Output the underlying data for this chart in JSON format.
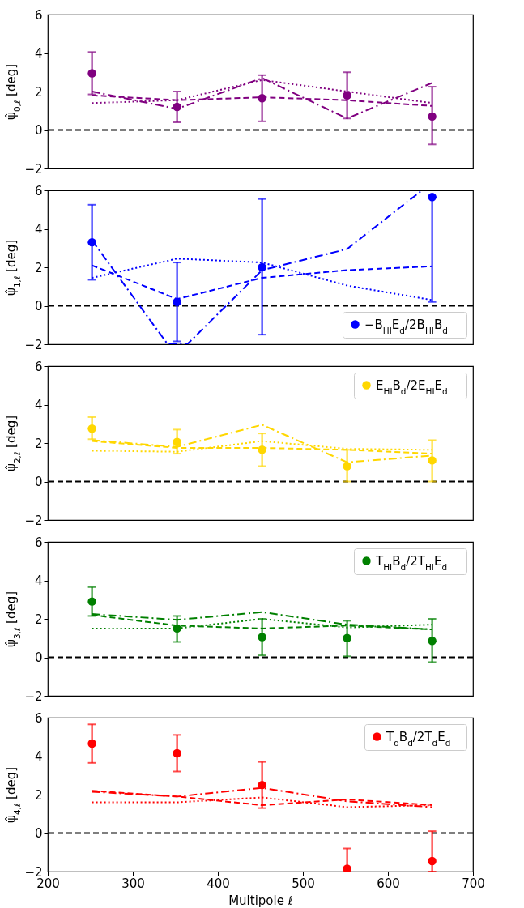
{
  "chart_data": [
    {
      "type": "scatter",
      "ylabel": "ψ̂$_{0,ℓ}$ [deg]",
      "xlim": [
        200,
        700
      ],
      "ylim": [
        -2,
        6
      ],
      "yticks": [
        -2,
        0,
        2,
        4,
        6
      ],
      "tick_labels": "y",
      "grid": false,
      "legend": false,
      "ref_lines": [
        {
          "axis": "y",
          "value": 0,
          "color": "#000000",
          "line_style": "dashed"
        }
      ],
      "series": [
        {
          "type": "scatter",
          "marker": "circle",
          "color": "#800080",
          "x": [
            252,
            352,
            452,
            552,
            652
          ],
          "values": [
            2.95,
            1.2,
            1.65,
            1.8,
            0.7
          ],
          "errors": [
            [
              1.85,
              4.05
            ],
            [
              0.4,
              2.0
            ],
            [
              0.45,
              2.85
            ],
            [
              0.6,
              3.0
            ],
            [
              -0.75,
              2.25
            ]
          ]
        },
        {
          "type": "line",
          "color": "#800080",
          "line_style": "dashed",
          "x": [
            252,
            352,
            452,
            552,
            652
          ],
          "values": [
            1.8,
            1.55,
            1.7,
            1.55,
            1.25
          ]
        },
        {
          "type": "line",
          "color": "#800080",
          "line_style": "dotted",
          "x": [
            252,
            352,
            452,
            552,
            652
          ],
          "values": [
            1.4,
            1.55,
            2.6,
            2.0,
            1.4
          ]
        },
        {
          "type": "line",
          "color": "#800080",
          "line_style": "dashdot",
          "x": [
            252,
            352,
            452,
            552,
            652
          ],
          "values": [
            2.0,
            1.1,
            2.7,
            0.6,
            2.45
          ]
        }
      ]
    },
    {
      "type": "scatter",
      "ylabel": "ψ̂$_{1,ℓ}$ [deg]",
      "xlim": [
        200,
        700
      ],
      "ylim": [
        -2,
        6
      ],
      "yticks": [
        -2,
        0,
        2,
        4,
        6
      ],
      "tick_labels": "y",
      "grid": false,
      "legend": "bottom right",
      "ref_lines": [
        {
          "axis": "y",
          "value": 0,
          "color": "#000000",
          "line_style": "dashed"
        }
      ],
      "series": [
        {
          "type": "scatter",
          "marker": "circle",
          "name": "−B$_{HI}$E$_{d}$/2B$_{HI}$B$_{d}$",
          "color": "#0000ff",
          "x": [
            252,
            352,
            452,
            552,
            652
          ],
          "values": [
            3.3,
            0.2,
            2.0,
            null,
            5.65
          ],
          "errors": [
            [
              1.35,
              5.25
            ],
            [
              -1.85,
              2.25
            ],
            [
              -1.5,
              5.55
            ],
            null,
            [
              0.2,
              5.65
            ]
          ]
        },
        {
          "type": "line",
          "color": "#0000ff",
          "line_style": "dashed",
          "x": [
            252,
            352,
            452,
            552,
            652
          ],
          "values": [
            2.1,
            0.35,
            1.45,
            1.85,
            2.05
          ]
        },
        {
          "type": "line",
          "color": "#0000ff",
          "line_style": "dotted",
          "x": [
            252,
            352,
            452,
            552,
            652
          ],
          "values": [
            1.45,
            2.45,
            2.25,
            1.05,
            0.3
          ]
        },
        {
          "type": "line",
          "color": "#0000ff",
          "line_style": "dashdot",
          "x": [
            252,
            341,
            364,
            452,
            552,
            640
          ],
          "values": [
            3.4,
            -2,
            -2,
            1.85,
            2.95,
            6
          ]
        }
      ]
    },
    {
      "type": "scatter",
      "ylabel": "ψ̂$_{2,ℓ}$ [deg]",
      "xlim": [
        200,
        700
      ],
      "ylim": [
        -2,
        6
      ],
      "yticks": [
        -2,
        0,
        2,
        4,
        6
      ],
      "tick_labels": "y",
      "grid": false,
      "legend": "top right",
      "ref_lines": [
        {
          "axis": "y",
          "value": 0,
          "color": "#000000",
          "line_style": "dashed"
        }
      ],
      "series": [
        {
          "type": "scatter",
          "marker": "circle",
          "name": "E$_{HI}$B$_{d}$/2E$_{HI}$E$_{d}$",
          "color": "#ffd700",
          "x": [
            252,
            352,
            452,
            552,
            652
          ],
          "values": [
            2.75,
            2.05,
            1.65,
            0.8,
            1.1
          ],
          "errors": [
            [
              2.2,
              3.35
            ],
            [
              1.45,
              2.7
            ],
            [
              0.8,
              2.5
            ],
            [
              0,
              1.65
            ],
            [
              0,
              2.15
            ]
          ]
        },
        {
          "type": "line",
          "color": "#ffd700",
          "line_style": "dashed",
          "x": [
            252,
            352,
            452,
            552,
            652
          ],
          "values": [
            2.1,
            1.75,
            1.75,
            1.65,
            1.45
          ]
        },
        {
          "type": "line",
          "color": "#ffd700",
          "line_style": "dotted",
          "x": [
            252,
            352,
            452,
            552,
            652
          ],
          "values": [
            1.6,
            1.55,
            2.1,
            1.7,
            1.65
          ]
        },
        {
          "type": "line",
          "color": "#ffd700",
          "line_style": "dashdot",
          "x": [
            252,
            352,
            452,
            552,
            652
          ],
          "values": [
            2.15,
            1.8,
            2.95,
            1.0,
            1.35
          ]
        }
      ]
    },
    {
      "type": "scatter",
      "ylabel": "ψ̂$_{3,ℓ}$ [deg]",
      "xlim": [
        200,
        700
      ],
      "ylim": [
        -2,
        6
      ],
      "yticks": [
        -2,
        0,
        2,
        4,
        6
      ],
      "tick_labels": "y",
      "grid": false,
      "legend": "top right",
      "ref_lines": [
        {
          "axis": "y",
          "value": 0,
          "color": "#000000",
          "line_style": "dashed"
        }
      ],
      "series": [
        {
          "type": "scatter",
          "marker": "circle",
          "name": "T$_{HI}$B$_{d}$/2T$_{HI}$E$_{d}$",
          "color": "#008000",
          "x": [
            252,
            352,
            452,
            552,
            652
          ],
          "values": [
            2.9,
            1.5,
            1.05,
            1.0,
            0.85
          ],
          "errors": [
            [
              2.15,
              3.65
            ],
            [
              0.8,
              2.15
            ],
            [
              0.1,
              2.0
            ],
            [
              0.05,
              1.9
            ],
            [
              -0.25,
              2.0
            ]
          ]
        },
        {
          "type": "line",
          "color": "#008000",
          "line_style": "dashed",
          "x": [
            252,
            352,
            452,
            552,
            652
          ],
          "values": [
            2.2,
            1.65,
            1.5,
            1.65,
            1.45
          ]
        },
        {
          "type": "line",
          "color": "#008000",
          "line_style": "dotted",
          "x": [
            252,
            352,
            452,
            552,
            652
          ],
          "values": [
            1.5,
            1.5,
            2.0,
            1.55,
            1.7
          ]
        },
        {
          "type": "line",
          "color": "#008000",
          "line_style": "dashdot",
          "x": [
            252,
            352,
            452,
            552,
            652
          ],
          "values": [
            2.25,
            1.95,
            2.35,
            1.7,
            1.45
          ]
        }
      ]
    },
    {
      "type": "scatter",
      "xlabel": "Multipole ℓ",
      "ylabel": "ψ̂$_{4,ℓ}$ [deg]",
      "xlim": [
        200,
        700
      ],
      "xticks": [
        200,
        300,
        400,
        500,
        600,
        700
      ],
      "ylim": [
        -2,
        6
      ],
      "yticks": [
        -2,
        0,
        2,
        4,
        6
      ],
      "grid": false,
      "legend": "top right",
      "ref_lines": [
        {
          "axis": "y",
          "value": 0,
          "color": "#000000",
          "line_style": "dashed"
        }
      ],
      "series": [
        {
          "type": "scatter",
          "marker": "circle",
          "name": "T$_{d}$B$_{d}$/2T$_{d}$E$_{d}$",
          "color": "#ff0000",
          "x": [
            252,
            352,
            452,
            552,
            652
          ],
          "values": [
            4.65,
            4.15,
            2.5,
            -1.85,
            -1.45
          ],
          "errors": [
            [
              3.65,
              5.65
            ],
            [
              3.2,
              5.1
            ],
            [
              1.3,
              3.7
            ],
            [
              -2,
              -0.8
            ],
            [
              -2,
              0.1
            ]
          ]
        },
        {
          "type": "line",
          "color": "#ff0000",
          "line_style": "dashed",
          "x": [
            252,
            352,
            452,
            552,
            652
          ],
          "values": [
            2.2,
            1.9,
            1.45,
            1.75,
            1.45
          ]
        },
        {
          "type": "line",
          "color": "#ff0000",
          "line_style": "dotted",
          "x": [
            252,
            352,
            452,
            552,
            652
          ],
          "values": [
            1.6,
            1.6,
            1.85,
            1.35,
            1.45
          ]
        },
        {
          "type": "line",
          "color": "#ff0000",
          "line_style": "dashdot",
          "x": [
            252,
            352,
            452,
            552,
            652
          ],
          "values": [
            2.15,
            1.9,
            2.35,
            1.65,
            1.35
          ]
        }
      ]
    }
  ]
}
